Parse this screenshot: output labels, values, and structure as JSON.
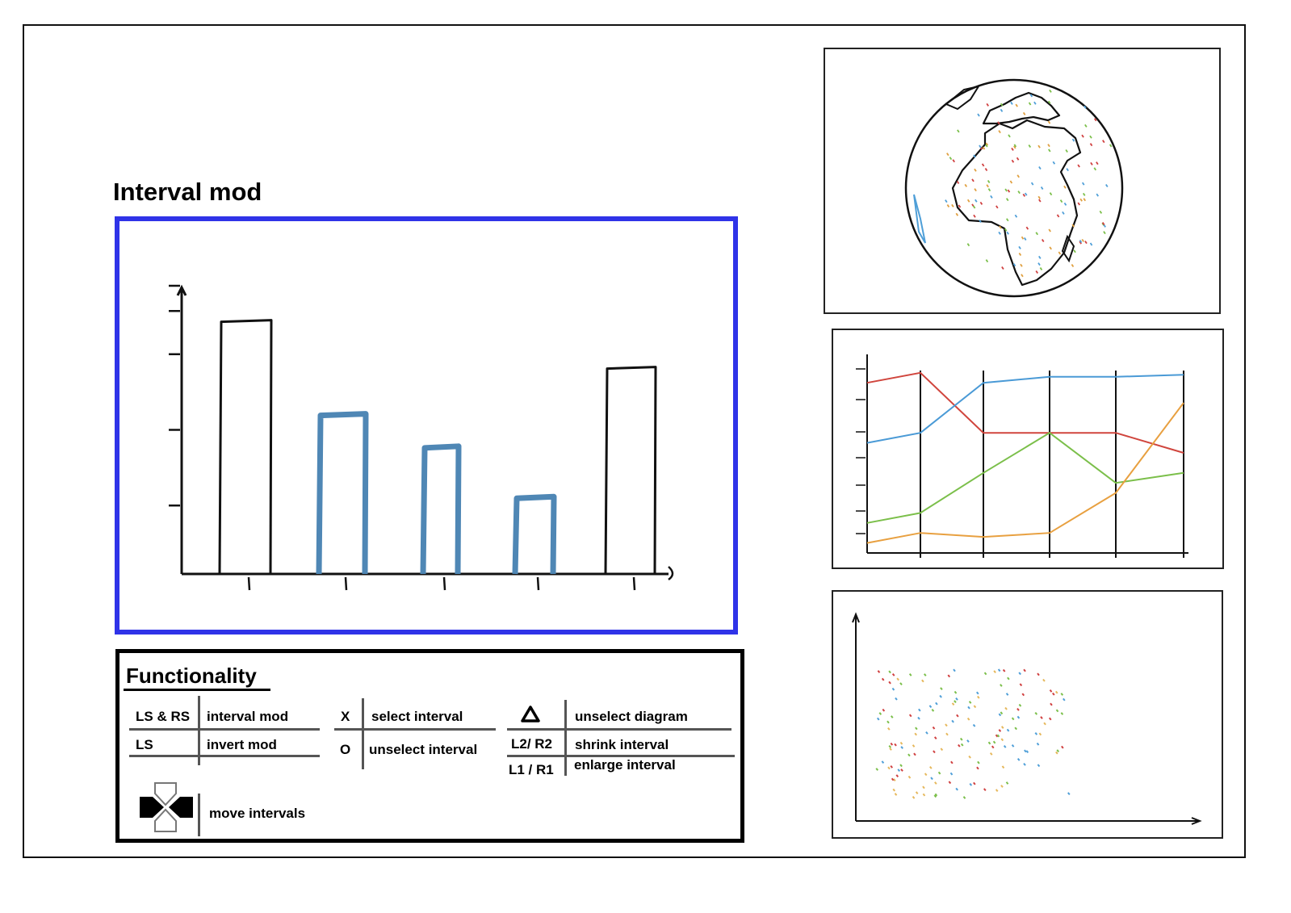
{
  "page": {
    "title": "Interval mod"
  },
  "main_chart": {
    "chart_data": {
      "type": "bar",
      "categories": [
        "",
        "",
        "",
        "",
        ""
      ],
      "values": [
        7,
        4.4,
        3.5,
        2.1,
        5.7
      ],
      "highlighted": [
        false,
        true,
        true,
        true,
        false
      ],
      "ylim": [
        0,
        8
      ],
      "xlabel": "",
      "ylabel": "",
      "colors": {
        "normal": "#111111",
        "selected": "#4f87b5",
        "frame": "#2f33e8"
      }
    }
  },
  "functionality": {
    "title": "Functionality",
    "rows": [
      {
        "key": "LS & RS",
        "action": "interval mod"
      },
      {
        "key": "LS",
        "action": "invert mod"
      },
      {
        "key": "X",
        "action": "select interval"
      },
      {
        "key": "O",
        "action": "unselect interval"
      },
      {
        "key": "triangle-icon",
        "action": "unselect diagram"
      },
      {
        "key": "L2/ R2",
        "action": "shrink interval"
      },
      {
        "key": "L1 / R1",
        "action": "enlarge interval"
      },
      {
        "key": "dpad-icon",
        "action": "move intervals"
      }
    ]
  },
  "globe_panel": {
    "icon": "globe-map-icon",
    "point_colors": [
      "#e0a040",
      "#4f9fd8",
      "#d04040",
      "#7bbf4a"
    ]
  },
  "parallel_chart": {
    "chart_data": {
      "type": "line",
      "x": [
        1,
        2,
        3,
        4,
        5
      ],
      "series": [
        {
          "color": "#d0453d",
          "values": [
            0.9,
            0.6,
            0.6,
            0.6,
            0.5
          ]
        },
        {
          "color": "#4a9ad6",
          "values": [
            0.6,
            0.85,
            0.88,
            0.88,
            0.89
          ]
        },
        {
          "color": "#7bbf4a",
          "values": [
            0.2,
            0.4,
            0.6,
            0.35,
            0.4
          ]
        },
        {
          "color": "#e8a040",
          "values": [
            0.1,
            0.08,
            0.1,
            0.3,
            0.75
          ]
        }
      ],
      "ylim": [
        0,
        1
      ]
    }
  },
  "scatter_chart": {
    "chart_data": {
      "type": "scatter",
      "colors": [
        "#e6b85c",
        "#4f9fd8",
        "#d04040",
        "#7bbf4a"
      ],
      "xlim": [
        0,
        1
      ],
      "ylim": [
        0,
        1
      ]
    }
  }
}
